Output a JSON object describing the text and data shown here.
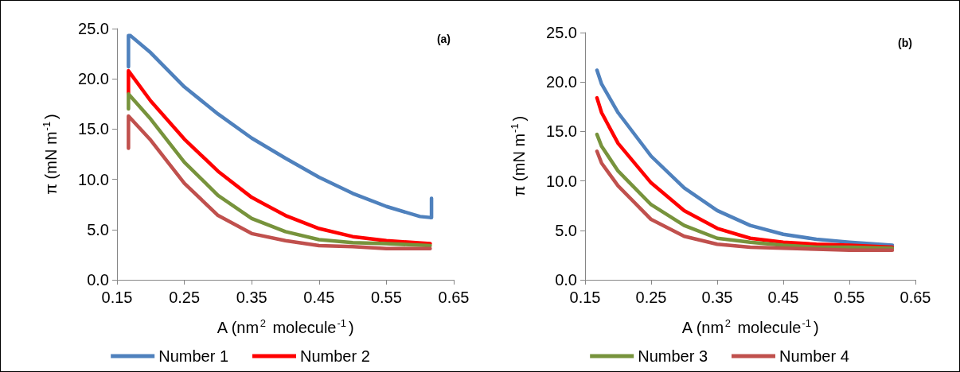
{
  "chart_data": [
    {
      "type": "line",
      "xlabel": "A (nm$^{2}$ molecule$^{-1}$)",
      "ylabel": "π (mN m$^{-1}$)",
      "annotations": [
        "(a)"
      ],
      "xlim": [
        0.15,
        0.65
      ],
      "xticks": [
        0.15,
        0.25,
        0.35,
        0.45,
        0.55,
        0.65
      ],
      "ylim": [
        0,
        25
      ],
      "yticks": [
        {
          "value": 0,
          "label": "0.0"
        },
        {
          "value": 5,
          "label": "5.0"
        },
        {
          "value": 10,
          "label": "10.0"
        },
        {
          "value": 15,
          "label": "15.0"
        },
        {
          "value": 20,
          "label": "20.0"
        },
        {
          "value": 25,
          "label": "25.0"
        }
      ],
      "grid": false,
      "legend": "bottom",
      "series": [
        {
          "name": "Number 1",
          "color": "#4f81bd",
          "x": [
            0.167,
            0.167,
            0.17,
            0.2,
            0.25,
            0.3,
            0.35,
            0.4,
            0.45,
            0.5,
            0.55,
            0.6,
            0.615,
            0.617,
            0.617
          ],
          "values": [
            21.2,
            24.3,
            24.3,
            22.6,
            19.2,
            16.5,
            14.1,
            12.1,
            10.2,
            8.6,
            7.3,
            6.3,
            6.2,
            6.2,
            8.1
          ]
        },
        {
          "name": "Number 2",
          "color": "#ff0000",
          "x": [
            0.167,
            0.167,
            0.2,
            0.25,
            0.3,
            0.35,
            0.4,
            0.45,
            0.5,
            0.55,
            0.615
          ],
          "values": [
            18.6,
            20.8,
            17.8,
            14.0,
            10.8,
            8.2,
            6.4,
            5.1,
            4.3,
            3.9,
            3.6
          ]
        },
        {
          "color": "#77933c",
          "x": [
            0.167,
            0.167,
            0.2,
            0.25,
            0.3,
            0.35,
            0.4,
            0.45,
            0.5,
            0.55,
            0.615
          ],
          "values": [
            17.0,
            18.5,
            16.0,
            11.7,
            8.4,
            6.1,
            4.8,
            4.0,
            3.7,
            3.6,
            3.4
          ]
        },
        {
          "color": "#c0504d",
          "x": [
            0.167,
            0.167,
            0.2,
            0.25,
            0.3,
            0.35,
            0.4,
            0.45,
            0.5,
            0.55,
            0.615
          ],
          "values": [
            13.1,
            16.3,
            13.9,
            9.6,
            6.4,
            4.6,
            3.9,
            3.4,
            3.3,
            3.1,
            3.1
          ]
        }
      ]
    },
    {
      "type": "line",
      "xlabel": "A (nm$^{2}$ molecule$^{-1}$)",
      "ylabel": "π (mN m$^{-1}$)",
      "annotations": [
        "(b)"
      ],
      "xlim": [
        0.15,
        0.65
      ],
      "xticks": [
        0.15,
        0.25,
        0.35,
        0.45,
        0.55,
        0.65
      ],
      "ylim": [
        0,
        25
      ],
      "yticks": [
        {
          "value": 0,
          "label": "0.0"
        },
        {
          "value": 5,
          "label": "5.0"
        },
        {
          "value": 10,
          "label": "10.0"
        },
        {
          "value": 15,
          "label": "15.0"
        },
        {
          "value": 20,
          "label": "20.0"
        },
        {
          "value": 25,
          "label": "25.0"
        }
      ],
      "grid": false,
      "legend": "bottom",
      "series": [
        {
          "color": "#4f81bd",
          "x": [
            0.168,
            0.175,
            0.2,
            0.25,
            0.3,
            0.35,
            0.4,
            0.45,
            0.5,
            0.55,
            0.615
          ],
          "values": [
            21.2,
            19.8,
            16.9,
            12.5,
            9.3,
            7.0,
            5.5,
            4.6,
            4.1,
            3.8,
            3.5
          ]
        },
        {
          "color": "#ff0000",
          "x": [
            0.168,
            0.175,
            0.2,
            0.25,
            0.3,
            0.35,
            0.4,
            0.45,
            0.5,
            0.55,
            0.615
          ],
          "values": [
            18.4,
            16.9,
            13.8,
            9.8,
            7.0,
            5.2,
            4.2,
            3.8,
            3.6,
            3.5,
            3.3
          ]
        },
        {
          "name": "Number 3",
          "color": "#77933c",
          "x": [
            0.168,
            0.175,
            0.2,
            0.25,
            0.3,
            0.35,
            0.4,
            0.45,
            0.5,
            0.55,
            0.615
          ],
          "values": [
            14.7,
            13.5,
            11.0,
            7.6,
            5.5,
            4.2,
            3.8,
            3.5,
            3.3,
            3.3,
            3.2
          ]
        },
        {
          "name": "Number 4",
          "color": "#c0504d",
          "x": [
            0.168,
            0.175,
            0.2,
            0.25,
            0.3,
            0.35,
            0.4,
            0.45,
            0.5,
            0.55,
            0.615
          ],
          "values": [
            13.0,
            11.8,
            9.5,
            6.1,
            4.4,
            3.6,
            3.3,
            3.2,
            3.1,
            3.0,
            3.0
          ]
        }
      ]
    }
  ]
}
